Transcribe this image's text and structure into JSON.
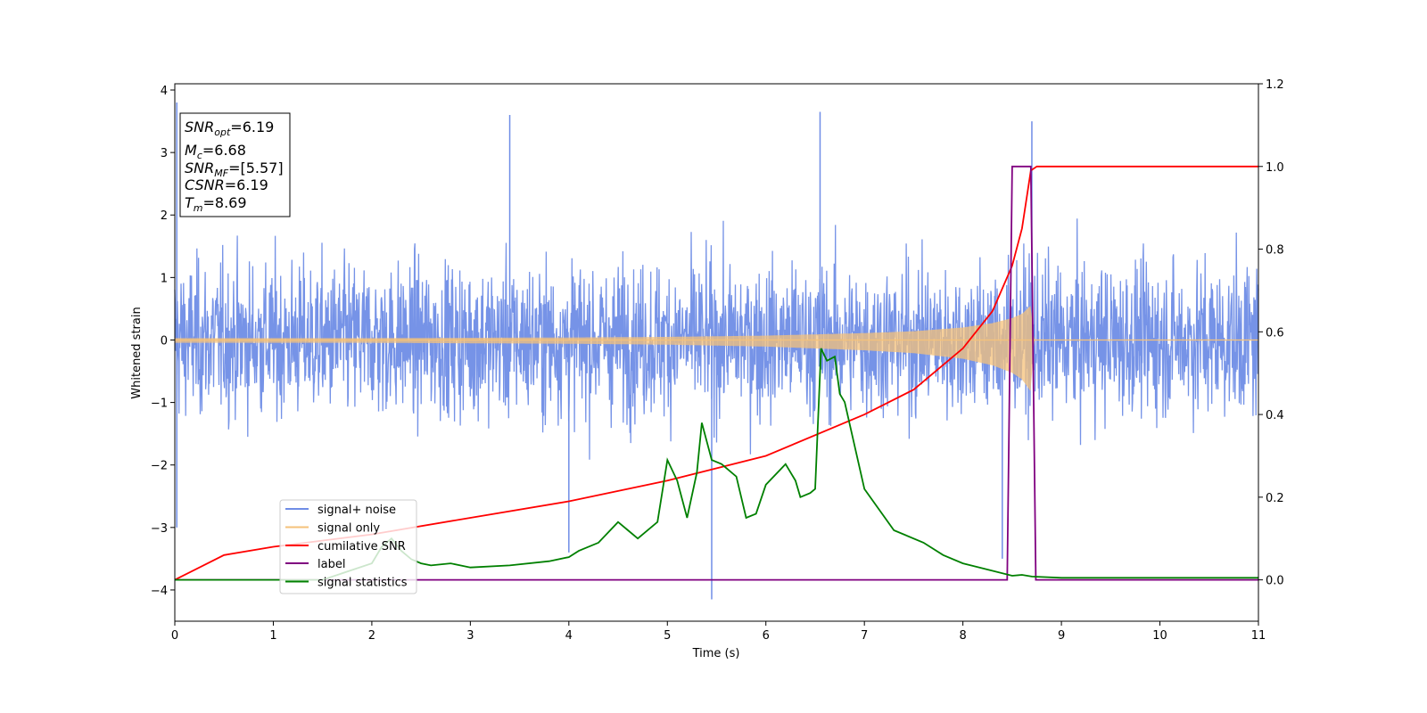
{
  "chart_data": {
    "type": "line",
    "xlabel": "Time (s)",
    "ylabel": "Whitened strain",
    "xlim": [
      0,
      11
    ],
    "ylim": [
      -4.5,
      4.1
    ],
    "y2lim": [
      -0.1,
      1.2
    ],
    "x_ticks": [
      "0",
      "1",
      "2",
      "3",
      "4",
      "5",
      "6",
      "7",
      "8",
      "9",
      "10",
      "11"
    ],
    "y_ticks": [
      "−4",
      "−3",
      "−2",
      "−1",
      "0",
      "1",
      "2",
      "3",
      "4"
    ],
    "y_tick_values": [
      -4,
      -3,
      -2,
      -1,
      0,
      1,
      2,
      3,
      4
    ],
    "y2_ticks": [
      "0.0",
      "0.2",
      "0.4",
      "0.6",
      "0.8",
      "1.0",
      "1.2"
    ],
    "y2_tick_values": [
      0,
      0.2,
      0.4,
      0.6,
      0.8,
      1.0,
      1.2
    ],
    "annotation": {
      "snr_opt": "=6.19",
      "mc": "=6.68",
      "snr_mf": "=[5.57]",
      "csnr": "=6.19",
      "tm": "=8.69"
    },
    "series": [
      {
        "name": "signal+ noise",
        "color": "#6f8de6",
        "axis": "left",
        "noise_band": [
          -2.0,
          2.0
        ],
        "extrema": [
          [
            0.02,
            3.8
          ],
          [
            0.02,
            -3.0
          ],
          [
            3.4,
            3.6
          ],
          [
            4.0,
            -3.4
          ],
          [
            5.45,
            -4.15
          ],
          [
            6.55,
            3.65
          ],
          [
            8.4,
            -3.5
          ],
          [
            8.7,
            3.5
          ]
        ]
      },
      {
        "name": "signal only",
        "color": "#f5c27a",
        "axis": "left",
        "chirp_end_time": 8.73,
        "envelope": [
          [
            0,
            0.03
          ],
          [
            2,
            0.03
          ],
          [
            4,
            0.04
          ],
          [
            5,
            0.05
          ],
          [
            6,
            0.07
          ],
          [
            7,
            0.11
          ],
          [
            7.5,
            0.14
          ],
          [
            8,
            0.2
          ],
          [
            8.3,
            0.27
          ],
          [
            8.5,
            0.35
          ],
          [
            8.6,
            0.42
          ],
          [
            8.69,
            0.55
          ],
          [
            8.72,
            0.0
          ]
        ]
      },
      {
        "name": "cumilative SNR",
        "color": "#ff0000",
        "axis": "right",
        "x": [
          0,
          0.5,
          1,
          2,
          3,
          4,
          5,
          6,
          7,
          7.5,
          8,
          8.3,
          8.5,
          8.6,
          8.69,
          8.75,
          11
        ],
        "y": [
          0.0,
          0.06,
          0.08,
          0.11,
          0.15,
          0.19,
          0.24,
          0.3,
          0.4,
          0.46,
          0.56,
          0.65,
          0.76,
          0.85,
          0.99,
          1.0,
          1.0
        ]
      },
      {
        "name": "label",
        "color": "#800080",
        "axis": "right",
        "x": [
          0,
          8.45,
          8.5,
          8.69,
          8.74,
          11
        ],
        "y": [
          0.0,
          0.0,
          1.0,
          1.0,
          0.0,
          0.0
        ]
      },
      {
        "name": "signal statistics",
        "color": "#008000",
        "axis": "right",
        "x": [
          0,
          1.5,
          2.0,
          2.1,
          2.2,
          2.3,
          2.4,
          2.5,
          2.6,
          2.8,
          3.0,
          3.4,
          3.8,
          4.0,
          4.1,
          4.3,
          4.5,
          4.6,
          4.7,
          4.9,
          5.0,
          5.1,
          5.2,
          5.3,
          5.35,
          5.45,
          5.55,
          5.7,
          5.8,
          5.9,
          6.0,
          6.2,
          6.3,
          6.35,
          6.45,
          6.5,
          6.56,
          6.62,
          6.7,
          6.75,
          6.8,
          7.0,
          7.3,
          7.6,
          7.8,
          8.0,
          8.5,
          8.6,
          8.7,
          9.0,
          11
        ],
        "y": [
          0.0,
          0.0,
          0.04,
          0.08,
          0.1,
          0.07,
          0.05,
          0.04,
          0.035,
          0.04,
          0.03,
          0.035,
          0.045,
          0.055,
          0.07,
          0.09,
          0.14,
          0.12,
          0.1,
          0.14,
          0.29,
          0.24,
          0.15,
          0.26,
          0.38,
          0.29,
          0.28,
          0.25,
          0.15,
          0.16,
          0.23,
          0.28,
          0.24,
          0.2,
          0.21,
          0.22,
          0.56,
          0.53,
          0.54,
          0.45,
          0.43,
          0.22,
          0.12,
          0.09,
          0.06,
          0.04,
          0.01,
          0.012,
          0.008,
          0.005,
          0.005
        ]
      }
    ],
    "legend_position": "lower-left",
    "grid": false
  }
}
